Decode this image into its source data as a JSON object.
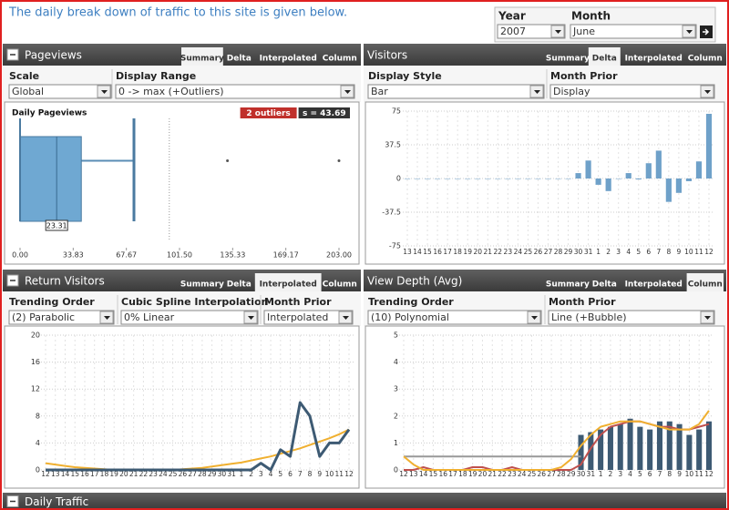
{
  "header": {
    "intro": "The daily break down of traffic to this site is given below.",
    "year_label": "Year",
    "year_value": "2007",
    "month_label": "Month",
    "month_value": "June"
  },
  "panels": [
    {
      "title": "Pageviews",
      "tabs": [
        "Summary",
        "Delta",
        "Interpolated",
        "Column"
      ],
      "active_tab": 0,
      "controls": [
        {
          "label": "Scale",
          "value": "Global"
        },
        {
          "label": "Display Range",
          "value": "0 -> max (+Outliers)"
        }
      ],
      "chart": {
        "type": "box",
        "title": "Daily Pageviews",
        "badges": [
          "2 outliers",
          "s = 43.69"
        ],
        "color": "#6fa8d2",
        "min": 0,
        "q1": 0,
        "median": 23.31,
        "q3": 39,
        "max": 72.5,
        "cutoff": 95,
        "outliers": [
          132,
          203
        ],
        "xlim": [
          0,
          203
        ],
        "xticks": [
          {
            "value": 0,
            "label": "0.00"
          },
          {
            "value": 33.83,
            "label": "33.83"
          },
          {
            "value": 67.67,
            "label": "67.67"
          },
          {
            "value": 101.5,
            "label": "101.50"
          },
          {
            "value": 135.33,
            "label": "135.33"
          },
          {
            "value": 169.17,
            "label": "169.17"
          },
          {
            "value": 203,
            "label": "203.00"
          }
        ]
      }
    },
    {
      "title": "Visitors",
      "tabs": [
        "Summary",
        "Delta",
        "Interpolated",
        "Column"
      ],
      "active_tab": 1,
      "controls": [
        {
          "label": "Display Style",
          "value": "Bar"
        },
        {
          "label": "Month Prior",
          "value": "Display"
        }
      ],
      "chart": {
        "type": "bar",
        "grid": true,
        "categories": [
          "13",
          "14",
          "15",
          "16",
          "17",
          "18",
          "19",
          "20",
          "21",
          "22",
          "23",
          "24",
          "25",
          "26",
          "27",
          "28",
          "29",
          "30",
          "31",
          "1",
          "2",
          "3",
          "4",
          "5",
          "6",
          "7",
          "8",
          "9",
          "10",
          "11",
          "12"
        ],
        "series": [
          {
            "color": "#6fa1c9",
            "values": [
              0,
              0,
              0,
              0,
              0,
              0,
              0,
              0,
              0,
              0,
              0,
              0,
              0,
              0,
              0,
              0,
              0,
              6,
              20,
              -7,
              -14,
              0,
              6,
              -1,
              17,
              31,
              -26,
              -16,
              -3,
              19,
              72
            ]
          }
        ],
        "ylim": [
          -75,
          75
        ],
        "yticks": [
          75,
          37.5,
          0,
          -37.5,
          -75
        ]
      }
    },
    {
      "title": "Return Visitors",
      "tabs": [
        "Summary",
        "Delta",
        "Interpolated",
        "Column"
      ],
      "active_tab": 2,
      "controls": [
        {
          "label": "Trending Order",
          "value": "(2) Parabolic"
        },
        {
          "label": "Cubic Spline Interpolation",
          "value": "0% Linear"
        },
        {
          "label": "Month Prior",
          "value": "Interpolated"
        }
      ],
      "chart": {
        "type": "line",
        "grid": true,
        "categories": [
          "12",
          "13",
          "14",
          "15",
          "16",
          "17",
          "18",
          "19",
          "20",
          "21",
          "22",
          "23",
          "24",
          "25",
          "26",
          "27",
          "28",
          "29",
          "30",
          "31",
          "1",
          "2",
          "3",
          "4",
          "5",
          "6",
          "7",
          "8",
          "9",
          "10",
          "11",
          "12"
        ],
        "series": [
          {
            "color": "#f0b030",
            "values": [
              1,
              0.8,
              0.6,
              0.4,
              0.3,
              0.2,
              0.1,
              0,
              0,
              0,
              0,
              0,
              0,
              0,
              0.1,
              0.2,
              0.3,
              0.5,
              0.7,
              0.9,
              1.1,
              1.4,
              1.7,
              2,
              2.4,
              2.8,
              3.2,
              3.7,
              4.2,
              4.7,
              5.3,
              6
            ]
          },
          {
            "color": "#3d5a73",
            "values": [
              0,
              0,
              0,
              0,
              0,
              0,
              0,
              0,
              0,
              0,
              0,
              0,
              0,
              0,
              0,
              0,
              0,
              0,
              0,
              0,
              0,
              0,
              1,
              0,
              3,
              2,
              10,
              8,
              2,
              4,
              4,
              6
            ]
          }
        ],
        "ylim": [
          0,
          20
        ],
        "yticks": [
          0,
          4,
          8,
          12,
          16,
          20
        ]
      }
    },
    {
      "title": "View Depth (Avg)",
      "tabs": [
        "Summary",
        "Delta",
        "Interpolated",
        "Column"
      ],
      "active_tab": 3,
      "controls": [
        {
          "label": "Trending Order",
          "value": "(10) Polynomial"
        },
        {
          "label": "Month Prior",
          "value": "Line (+Bubble)"
        }
      ],
      "chart": {
        "type": "combo",
        "grid": true,
        "categories": [
          "12",
          "13",
          "14",
          "15",
          "16",
          "17",
          "18",
          "19",
          "20",
          "21",
          "22",
          "23",
          "24",
          "25",
          "26",
          "27",
          "28",
          "29",
          "30",
          "31",
          "1",
          "2",
          "3",
          "4",
          "5",
          "6",
          "7",
          "8",
          "9",
          "10",
          "11",
          "12"
        ],
        "series": [
          {
            "kind": "bar",
            "color": "#3d5a73",
            "values": [
              null,
              null,
              null,
              null,
              null,
              null,
              null,
              null,
              null,
              null,
              null,
              null,
              null,
              null,
              null,
              null,
              null,
              null,
              1.3,
              1.4,
              1.5,
              1.6,
              1.7,
              1.9,
              1.6,
              1.5,
              1.8,
              1.8,
              1.7,
              1.3,
              1.5,
              1.8
            ]
          },
          {
            "kind": "line",
            "color": "#999999",
            "values": [
              0.5,
              0.5,
              0.5,
              0.5,
              0.5,
              0.5,
              0.5,
              0.5,
              0.5,
              0.5,
              0.5,
              0.5,
              0.5,
              0.5,
              0.5,
              0.5,
              0.5,
              0.5,
              0.5,
              null,
              null,
              null,
              null,
              null,
              null,
              null,
              null,
              null,
              null,
              null,
              null,
              null
            ]
          },
          {
            "kind": "line",
            "color": "#c0504d",
            "values": [
              0,
              0,
              0.1,
              0,
              0,
              0,
              0,
              0.1,
              0.1,
              0,
              0,
              0.1,
              0,
              0,
              0,
              0,
              0,
              0,
              0.2,
              0.8,
              1.3,
              1.6,
              1.7,
              1.8,
              1.8,
              1.7,
              1.6,
              1.6,
              1.5,
              1.5,
              1.6,
              1.7
            ]
          },
          {
            "kind": "line",
            "color": "#f0b030",
            "values": [
              0.5,
              0.2,
              0,
              0,
              0,
              0,
              0,
              0,
              0,
              0,
              0,
              0,
              0,
              0,
              0,
              0,
              0.1,
              0.4,
              0.9,
              1.3,
              1.6,
              1.7,
              1.8,
              1.8,
              1.8,
              1.7,
              1.6,
              1.5,
              1.5,
              1.5,
              1.7,
              2.2
            ]
          }
        ],
        "ylim": [
          0,
          5
        ],
        "yticks": [
          0,
          1,
          2,
          3,
          4,
          5
        ]
      }
    },
    {
      "title": "Daily Traffic"
    }
  ]
}
